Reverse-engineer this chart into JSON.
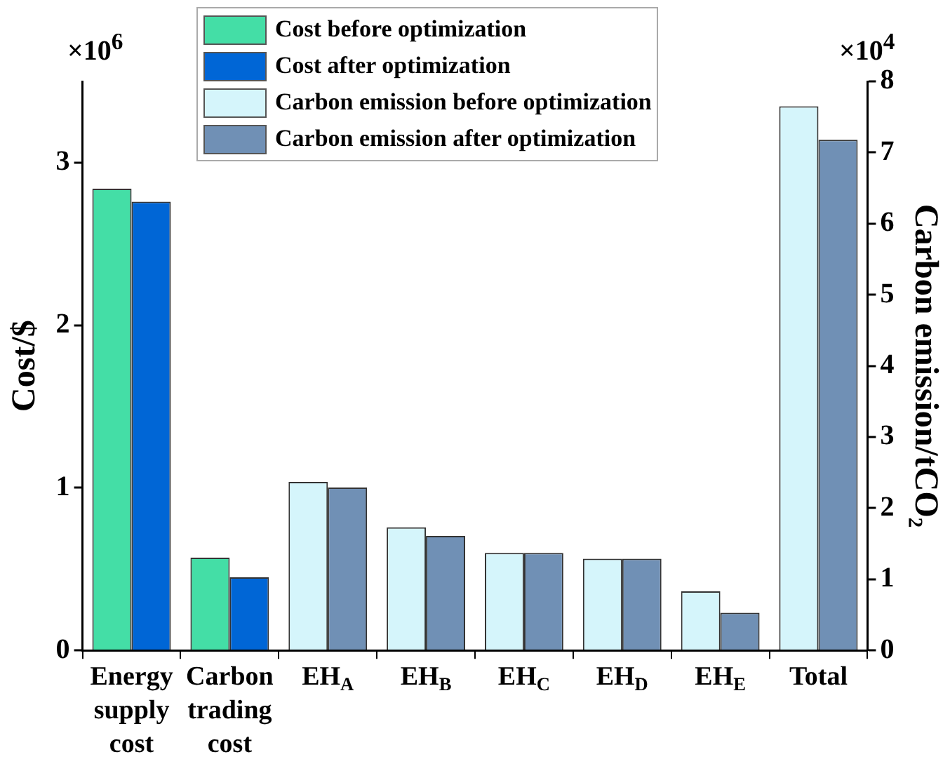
{
  "chart_data": {
    "type": "bar",
    "categories": [
      "Energy supply cost",
      "Carbon trading cost",
      "EH$_{A}$",
      "EH$_{B}$",
      "EH$_{C}$",
      "EH$_{D}$",
      "EH$_{E}$",
      "Total"
    ],
    "ylabel": "Cost/$",
    "y2label": "Carbon emission/tCO₂",
    "ylim": [
      0,
      3.5
    ],
    "yticks": [
      0,
      1,
      2,
      3
    ],
    "y2lim": [
      0,
      8
    ],
    "y2ticks": [
      0,
      1,
      2,
      3,
      4,
      5,
      6,
      7,
      8
    ],
    "annotations": [
      "×10$^{6}$",
      "×10$^{4}$"
    ],
    "legend": "top",
    "grid": false,
    "series": [
      {
        "name": "Cost before optimization",
        "color": "#44dea6",
        "values": [
          2.84,
          0.57,
          null,
          null,
          null,
          null,
          null,
          null
        ]
      },
      {
        "name": "Cost after optimization",
        "color": "#0066d6",
        "values": [
          2.76,
          0.45,
          null,
          null,
          null,
          null,
          null,
          null
        ]
      },
      {
        "name": "Carbon emission before optimization",
        "color": "#d5f5fb",
        "axis": "y2",
        "values": [
          null,
          null,
          2.37,
          1.73,
          1.37,
          1.29,
          0.83,
          7.65
        ]
      },
      {
        "name": "Carbon emission after optimization",
        "color": "#7090b5",
        "axis": "y2",
        "values": [
          null,
          null,
          2.29,
          1.61,
          1.37,
          1.29,
          0.53,
          7.18
        ]
      }
    ]
  }
}
